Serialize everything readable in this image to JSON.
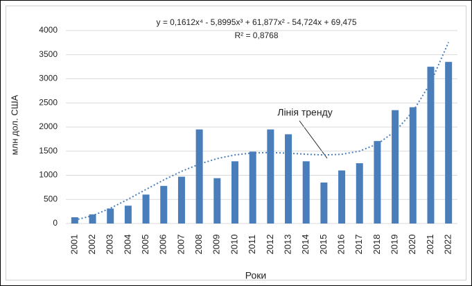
{
  "chart_data": {
    "type": "bar",
    "equation": "y = 0,1612x⁴ - 5,8995x³ + 61,877x² - 54,724x + 69,475",
    "r_squared": "R² = 0,8768",
    "annotation": "Лінія тренду",
    "ylabel": "млн дол. США",
    "xlabel": "Роки",
    "categories": [
      "2001",
      "2002",
      "2003",
      "2004",
      "2005",
      "2006",
      "2007",
      "2008",
      "2009",
      "2010",
      "2011",
      "2012",
      "2013",
      "2014",
      "2015",
      "2016",
      "2017",
      "2018",
      "2019",
      "2020",
      "2021",
      "2022"
    ],
    "series": [
      {
        "type": "bar",
        "color": "#4a7ebb",
        "values": [
          130,
          190,
          310,
          370,
          600,
          780,
          970,
          1950,
          940,
          1290,
          1490,
          1950,
          1850,
          1290,
          850,
          1100,
          1250,
          1710,
          2350,
          2410,
          3250,
          3350
        ]
      },
      {
        "type": "line",
        "name": "Лінія тренду",
        "color": "#4a7ebb",
        "values": [
          71,
          163,
          316,
          504,
          706,
          903,
          1082,
          1232,
          1346,
          1422,
          1463,
          1471,
          1458,
          1436,
          1421,
          1435,
          1501,
          1648,
          1911,
          2322,
          2923,
          3758
        ]
      }
    ],
    "ylim": [
      0,
      4000
    ],
    "yticks": [
      0,
      500,
      1000,
      1500,
      2000,
      2500,
      3000,
      3500,
      4000
    ],
    "grid": true
  }
}
